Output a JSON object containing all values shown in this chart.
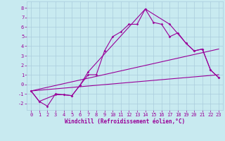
{
  "xlabel": "Windchill (Refroidissement éolien,°C)",
  "bg_color": "#c8eaf0",
  "line_color": "#990099",
  "grid_color": "#aaccdd",
  "spine_color": "#aaaaaa",
  "xlim": [
    -0.5,
    23.5
  ],
  "ylim": [
    -2.7,
    8.7
  ],
  "xticks": [
    0,
    1,
    2,
    3,
    4,
    5,
    6,
    7,
    8,
    9,
    10,
    11,
    12,
    13,
    14,
    15,
    16,
    17,
    18,
    19,
    20,
    21,
    22,
    23
  ],
  "yticks": [
    -2,
    -1,
    0,
    1,
    2,
    3,
    4,
    5,
    6,
    7,
    8
  ],
  "line1_x": [
    0,
    1,
    2,
    3,
    4,
    5,
    6,
    7,
    8,
    9,
    10,
    11,
    12,
    13,
    14,
    15,
    16,
    17,
    18,
    19,
    20,
    21,
    22,
    23
  ],
  "line1_y": [
    -0.7,
    -1.8,
    -2.3,
    -1.0,
    -1.1,
    -1.2,
    -0.1,
    1.0,
    1.0,
    3.5,
    5.0,
    5.5,
    6.3,
    6.3,
    7.9,
    6.5,
    6.3,
    5.0,
    5.4,
    4.3,
    3.5,
    3.7,
    1.5,
    0.7
  ],
  "line2_x": [
    0,
    1,
    3,
    4,
    5,
    6,
    7,
    14,
    17,
    19,
    20,
    21,
    22,
    23
  ],
  "line2_y": [
    -0.7,
    -1.8,
    -1.1,
    -1.1,
    -1.2,
    -0.1,
    1.3,
    7.9,
    6.3,
    4.3,
    3.5,
    3.7,
    1.5,
    0.7
  ],
  "line3_x": [
    0,
    23
  ],
  "line3_y": [
    -0.7,
    1.0
  ],
  "line4_x": [
    0,
    23
  ],
  "line4_y": [
    -0.7,
    3.7
  ],
  "tick_fontsize": 5,
  "xlabel_fontsize": 5.5,
  "marker": "D",
  "markersize": 1.8,
  "linewidth": 0.8
}
